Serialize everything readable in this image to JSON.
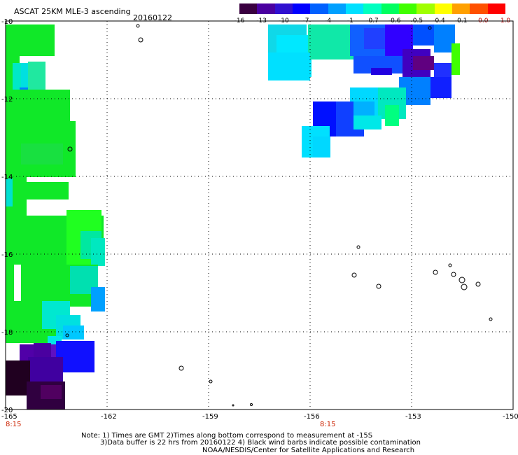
{
  "header": {
    "title": "ASCAT 25KM MLE-3 ascending",
    "date": "20160122"
  },
  "colorbar": {
    "colors": [
      "#3a0040",
      "#4a00a0",
      "#3010d0",
      "#0000ff",
      "#0060ff",
      "#00a0ff",
      "#00e0ff",
      "#00ffc0",
      "#00ff60",
      "#40ff00",
      "#a0ff00",
      "#ffff00",
      "#ffa000",
      "#ff5000",
      "#ff0000"
    ],
    "labels": [
      {
        "text": "-16",
        "red": false
      },
      {
        "text": "-13",
        "red": false
      },
      {
        "text": "-10",
        "red": false
      },
      {
        "text": "-7",
        "red": false
      },
      {
        "text": "-4",
        "red": false
      },
      {
        "text": "-1",
        "red": false
      },
      {
        "text": "-0.7",
        "red": false
      },
      {
        "text": "-0.6",
        "red": false
      },
      {
        "text": "-0.5",
        "red": false
      },
      {
        "text": "-0.4",
        "red": false
      },
      {
        "text": "-0.1",
        "red": false
      },
      {
        "text": "0.0",
        "red": true
      },
      {
        "text": "1.0",
        "red": true
      }
    ]
  },
  "chart_data": {
    "type": "heatmap",
    "lon_range": [
      -165,
      -150
    ],
    "lat_range": [
      -20,
      -10
    ],
    "lon_ticks": [
      "-165",
      "-162",
      "-159",
      "-156",
      "-153",
      "-150"
    ],
    "lat_ticks": [
      "-10",
      "-12",
      "-14",
      "-16",
      "-18",
      "-20"
    ],
    "time_labels": [
      "8:15",
      "8:15"
    ]
  },
  "notes": {
    "line1": "Note: 1) Times are GMT 2)Times along bottom correspond to measurement at -15S",
    "line2": "3)Data buffer is 22 hrs from 20160122 4) Black wind barbs indicate possible contamination",
    "line3": "NOAA/NESDIS/Center for Satellite Applications and Research"
  }
}
